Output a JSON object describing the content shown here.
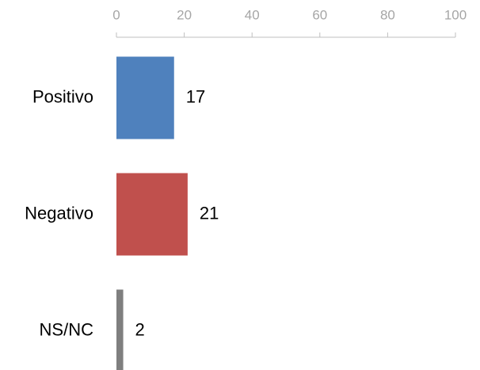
{
  "chart_data": {
    "type": "bar",
    "orientation": "horizontal",
    "categories": [
      "Positivo",
      "Negativo",
      "NS/NC"
    ],
    "values": [
      17,
      21,
      2
    ],
    "colors": [
      "#4f81bd",
      "#c0504d",
      "#7f7f7f"
    ],
    "xlim": [
      0,
      100
    ],
    "xticks": [
      0,
      20,
      40,
      60,
      80,
      100
    ],
    "grid": false
  }
}
